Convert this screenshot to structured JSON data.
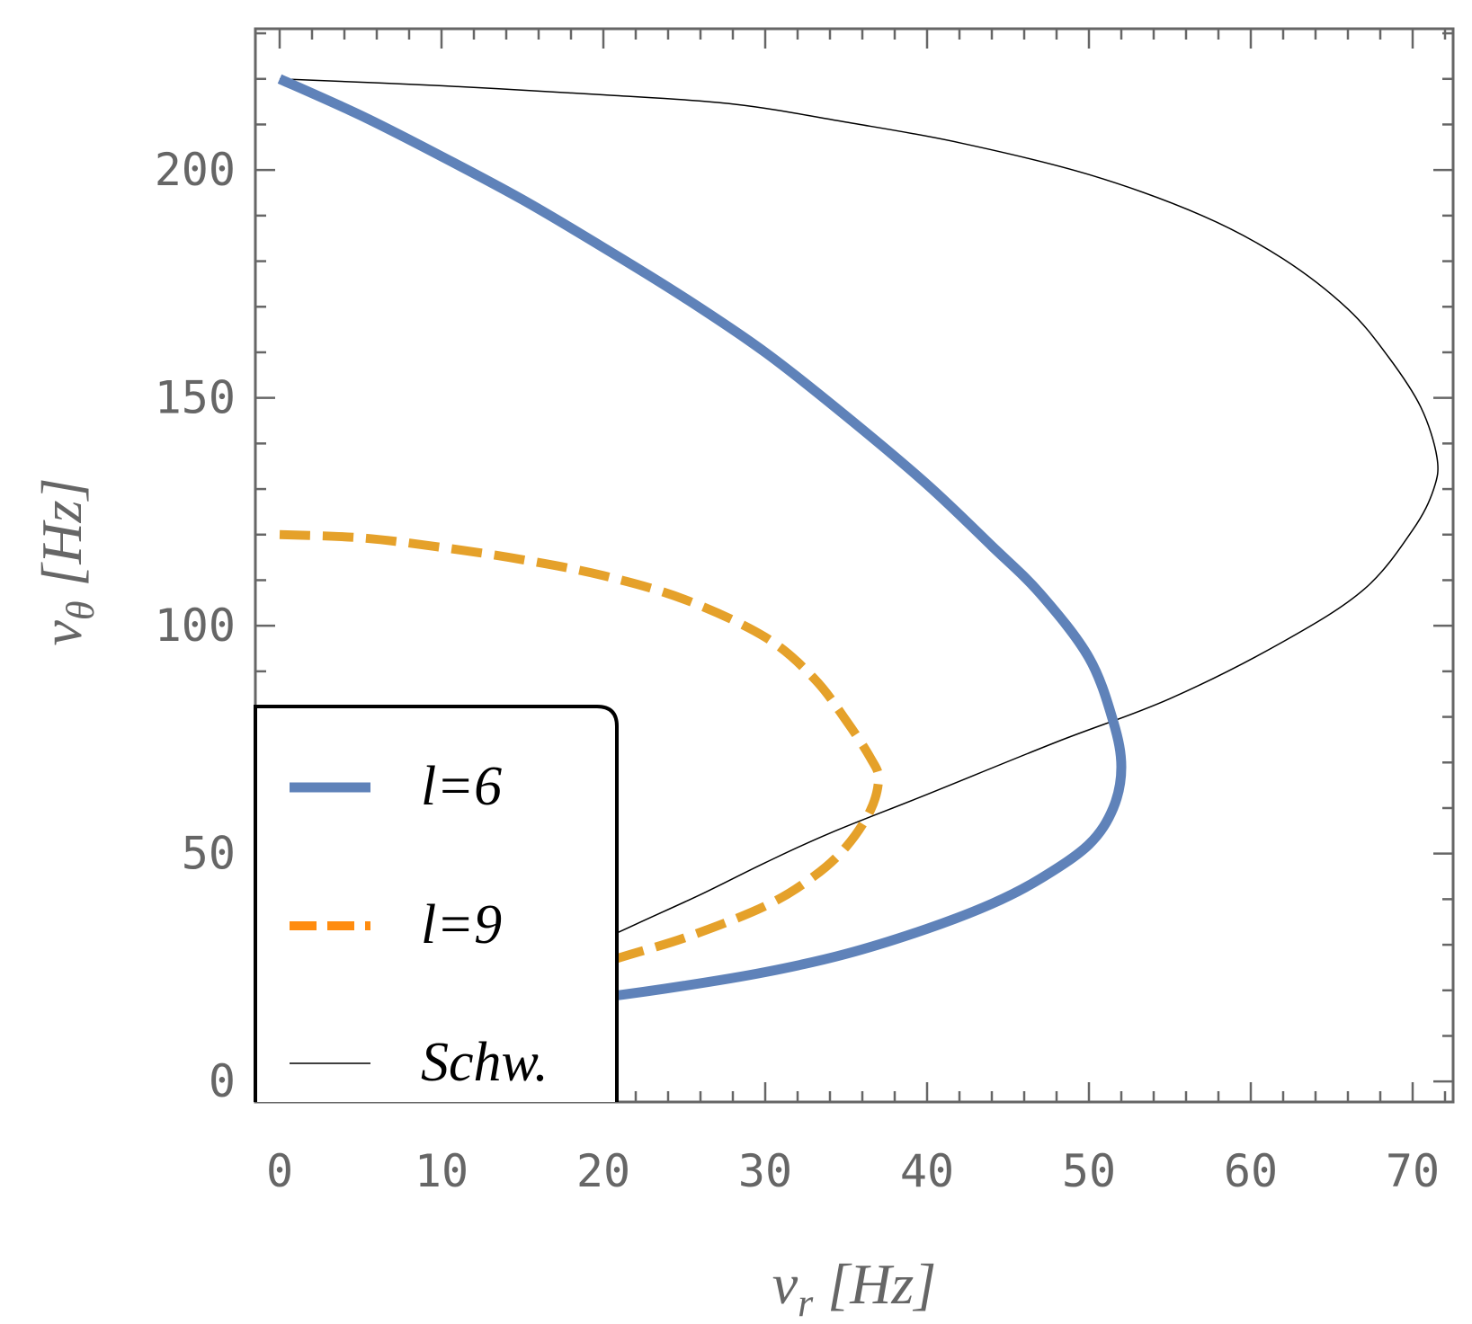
{
  "chart_data": {
    "type": "line",
    "title": "",
    "xlabel": {
      "symbol": "ν",
      "sub": "r",
      "unit": " [Hz]"
    },
    "ylabel": {
      "symbol": "ν",
      "sub": "θ",
      "unit": " [Hz]"
    },
    "xlim": [
      -1.5,
      72.5
    ],
    "ylim": [
      -4.5,
      231
    ],
    "xticks": [
      0,
      10,
      20,
      30,
      40,
      50,
      60,
      70
    ],
    "yticks": [
      0,
      50,
      100,
      150,
      200
    ],
    "grid": false,
    "legend_position": "bottom-left",
    "colors": {
      "blue": "#5f82b9",
      "orange": "#e5a12a",
      "orange_legend": "#ff8c0f",
      "black": "#000000",
      "frame": "#666666"
    },
    "series": [
      {
        "name": "l=6",
        "style": "solid-thick",
        "color": "#5f82b9",
        "x": [
          0,
          5,
          10,
          15,
          20,
          25,
          30,
          35,
          40,
          44,
          47,
          50,
          51.5,
          52,
          51.5,
          50,
          47,
          44,
          40,
          35,
          30,
          25,
          20,
          15
        ],
        "y": [
          220,
          212,
          203,
          193.5,
          183,
          172,
          160,
          146,
          131,
          117.5,
          107,
          93,
          79,
          69,
          60,
          52,
          44.5,
          39,
          33.5,
          28,
          24,
          21,
          18.5,
          16.5
        ]
      },
      {
        "name": "l=9",
        "style": "dashed",
        "color": "#e5a12a",
        "x": [
          0,
          5,
          10,
          15,
          20,
          25,
          30,
          33,
          35,
          36.5,
          37,
          36.5,
          35,
          33,
          30,
          25,
          20,
          15,
          14
        ],
        "y": [
          120,
          119.3,
          117.2,
          114.5,
          111,
          105.8,
          97.5,
          88.5,
          79.2,
          71,
          66.5,
          59.5,
          51.5,
          45,
          38.5,
          31.5,
          26,
          19,
          16
        ]
      },
      {
        "name": "Schw.",
        "style": "thin",
        "color": "#000000",
        "x": [
          0,
          10,
          20,
          28,
          35,
          42,
          50,
          57,
          62,
          66,
          68.5,
          70.5,
          71.5,
          71.3,
          70,
          67,
          62,
          55,
          48,
          40,
          34,
          30,
          26,
          22,
          19,
          16
        ],
        "y": [
          220,
          218.5,
          216.5,
          214.5,
          210.5,
          206,
          199,
          190,
          180.5,
          169.5,
          159,
          148,
          137,
          130,
          121,
          108,
          96.5,
          84,
          74.5,
          63,
          54.5,
          48,
          41,
          34.5,
          29.5,
          24
        ]
      }
    ]
  }
}
